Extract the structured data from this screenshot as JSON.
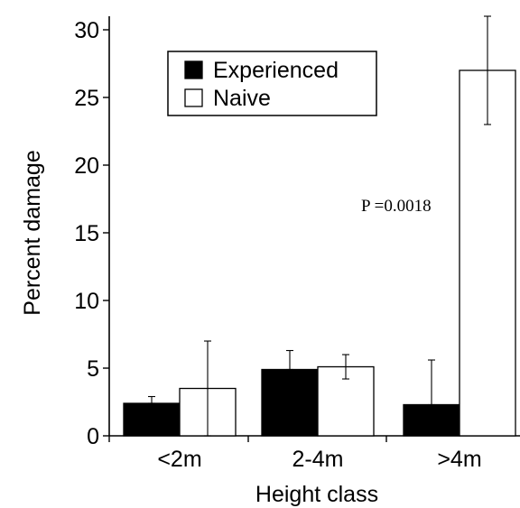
{
  "chart_data": {
    "type": "bar",
    "title": "",
    "xlabel": "Height class",
    "ylabel": "Percent damage",
    "categories": [
      "<2m",
      "2-4m",
      ">4m"
    ],
    "ylim": [
      0,
      30
    ],
    "yticks": [
      0,
      5,
      10,
      15,
      20,
      25,
      30
    ],
    "grid": false,
    "legend_position": "top-left",
    "series": [
      {
        "name": "Experienced",
        "color": "#000000",
        "values": [
          2.4,
          4.9,
          2.3
        ],
        "error_upper": [
          2.9,
          6.3,
          5.6
        ],
        "error_lower": [
          2.4,
          4.9,
          2.3
        ]
      },
      {
        "name": "Naive",
        "color": "#ffffff",
        "values": [
          3.5,
          5.1,
          27.0
        ],
        "error_upper": [
          7.0,
          6.0,
          31.0
        ],
        "error_lower": [
          0.0,
          4.2,
          23.0
        ]
      }
    ],
    "annotations": [
      {
        "text": "P =0.0018",
        "category": ">4m"
      }
    ]
  }
}
